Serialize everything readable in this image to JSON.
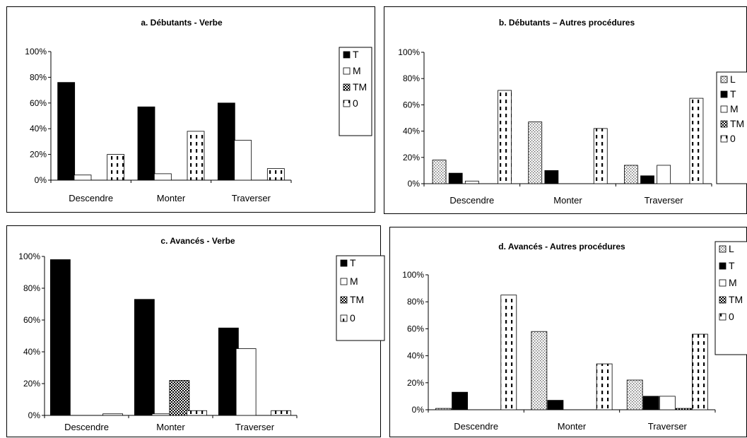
{
  "chart_data": [
    {
      "type": "bar",
      "title": "a. Débutants - Verbe",
      "categories": [
        "Descendre",
        "Monter",
        "Traverser"
      ],
      "yticks": [
        "0%",
        "20%",
        "40%",
        "60%",
        "80%",
        "100%"
      ],
      "ylim": [
        0,
        100
      ],
      "legend_position": "right",
      "series": [
        {
          "name": "T",
          "pattern": "solid",
          "values": [
            76,
            57,
            60
          ]
        },
        {
          "name": "M",
          "pattern": "white",
          "values": [
            4,
            5,
            31
          ]
        },
        {
          "name": "TM",
          "pattern": "checker",
          "values": [
            0,
            0,
            0
          ]
        },
        {
          "name": "0",
          "pattern": "dashed",
          "values": [
            20,
            38,
            9
          ]
        }
      ]
    },
    {
      "type": "bar",
      "title": "b. Débutants – Autres procédures",
      "categories": [
        "Descendre",
        "Monter",
        "Traverser"
      ],
      "yticks": [
        "0%",
        "20%",
        "40%",
        "60%",
        "80%",
        "100%"
      ],
      "ylim": [
        0,
        100
      ],
      "legend_position": "right",
      "series": [
        {
          "name": "L",
          "pattern": "dotted",
          "values": [
            18,
            47,
            14
          ]
        },
        {
          "name": "T",
          "pattern": "solid",
          "values": [
            8,
            10,
            6
          ]
        },
        {
          "name": "M",
          "pattern": "white",
          "values": [
            2,
            0,
            14
          ]
        },
        {
          "name": "TM",
          "pattern": "checker",
          "values": [
            0,
            0,
            0
          ]
        },
        {
          "name": "0",
          "pattern": "dashed",
          "values": [
            71,
            42,
            65
          ]
        }
      ]
    },
    {
      "type": "bar",
      "title": "c. Avancés - Verbe",
      "categories": [
        "Descendre",
        "Monter",
        "Traverser"
      ],
      "yticks": [
        "0%",
        "20%",
        "40%",
        "60%",
        "80%",
        "100%"
      ],
      "ylim": [
        0,
        100
      ],
      "legend_position": "right",
      "series": [
        {
          "name": "T",
          "pattern": "solid",
          "values": [
            98,
            73,
            55
          ]
        },
        {
          "name": "M",
          "pattern": "white",
          "values": [
            0,
            1,
            42
          ]
        },
        {
          "name": "TM",
          "pattern": "checker",
          "values": [
            0,
            22,
            0
          ]
        },
        {
          "name": "0",
          "pattern": "dashed",
          "values": [
            1,
            3,
            3
          ]
        }
      ]
    },
    {
      "type": "bar",
      "title": "d. Avancés - Autres procédures",
      "categories": [
        "Descendre",
        "Monter",
        "Traverser"
      ],
      "yticks": [
        "0%",
        "20%",
        "40%",
        "60%",
        "80%",
        "100%"
      ],
      "ylim": [
        0,
        100
      ],
      "legend_position": "right",
      "series": [
        {
          "name": "L",
          "pattern": "dotted",
          "values": [
            1,
            58,
            22
          ]
        },
        {
          "name": "T",
          "pattern": "solid",
          "values": [
            13,
            7,
            10
          ]
        },
        {
          "name": "M",
          "pattern": "white",
          "values": [
            0,
            0,
            10
          ]
        },
        {
          "name": "TM",
          "pattern": "checker",
          "values": [
            0,
            0,
            1
          ]
        },
        {
          "name": "0",
          "pattern": "dashed",
          "values": [
            85,
            34,
            56
          ]
        }
      ]
    }
  ]
}
